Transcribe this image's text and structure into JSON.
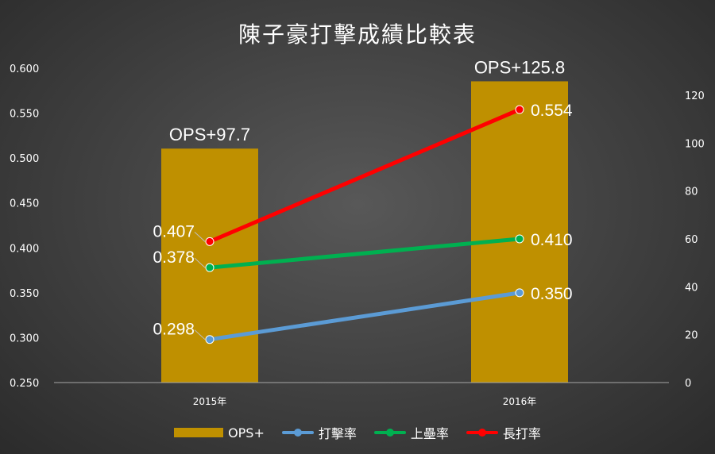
{
  "chart_data": {
    "type": "bar+line",
    "title": "陳子豪打擊成績比較表",
    "categories": [
      "2015年",
      "2016年"
    ],
    "bar_series": {
      "name": "OPS+",
      "axis": "right",
      "values": [
        97.7,
        125.8
      ],
      "labels": [
        "OPS+97.7",
        "OPS+125.8"
      ],
      "color": "#bf9000"
    },
    "line_series": [
      {
        "name": "打擊率",
        "axis": "left",
        "values": [
          0.298,
          0.35
        ],
        "labels": [
          "0.298",
          "0.350"
        ],
        "color": "#5b9bd5"
      },
      {
        "name": "上壘率",
        "axis": "left",
        "values": [
          0.378,
          0.41
        ],
        "labels": [
          "0.378",
          "0.410"
        ],
        "color": "#00b050"
      },
      {
        "name": "長打率",
        "axis": "left",
        "values": [
          0.407,
          0.554
        ],
        "labels": [
          "0.407",
          "0.554"
        ],
        "color": "#ff0000"
      }
    ],
    "y_left": {
      "ylim": [
        0.25,
        0.6
      ],
      "ticks": [
        "0.250",
        "0.300",
        "0.350",
        "0.400",
        "0.450",
        "0.500",
        "0.550",
        "0.600"
      ]
    },
    "y_right": {
      "ylim": [
        0,
        131.25
      ],
      "ticks": [
        "0",
        "20",
        "40",
        "60",
        "80",
        "100",
        "120"
      ]
    },
    "grid": false,
    "legend_position": "bottom"
  }
}
